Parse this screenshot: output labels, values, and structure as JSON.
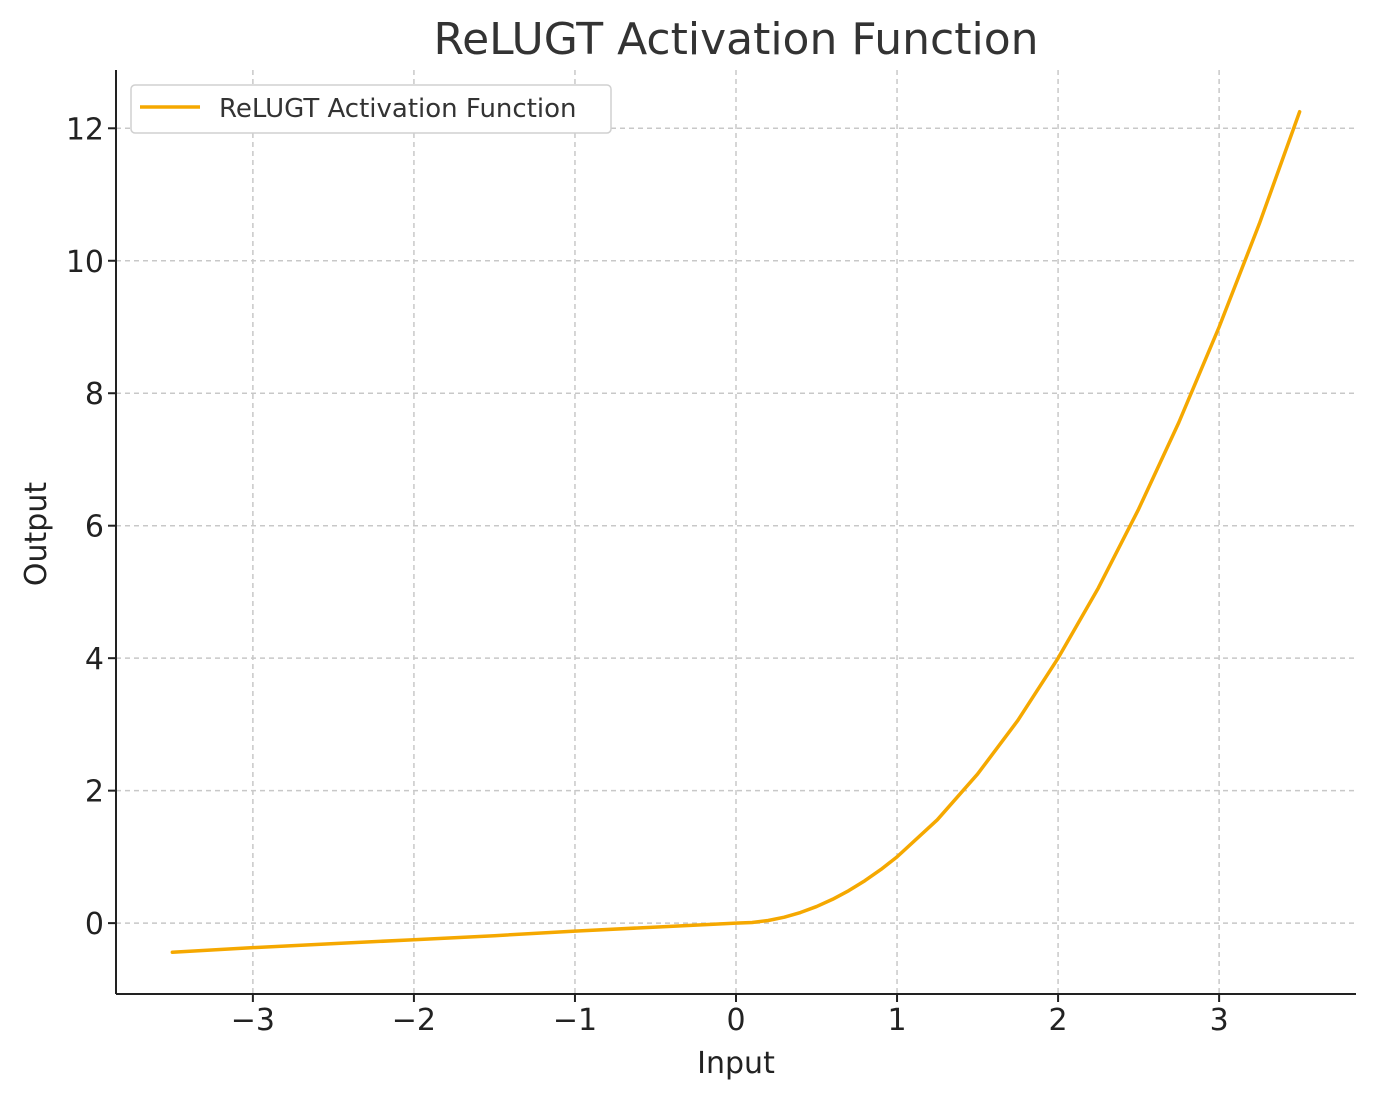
{
  "chart_data": {
    "type": "line",
    "title": "ReLUGT Activation Function",
    "xlabel": "Input",
    "ylabel": "Output",
    "xlim": [
      -3.85,
      3.85
    ],
    "ylim": [
      -1.07,
      12.88
    ],
    "x_ticks": [
      -3,
      -2,
      -1,
      0,
      1,
      2,
      3
    ],
    "x_tick_labels": [
      "−3",
      "−2",
      "−1",
      "0",
      "1",
      "2",
      "3"
    ],
    "y_ticks": [
      0,
      2,
      4,
      6,
      8,
      10,
      12
    ],
    "y_tick_labels": [
      "0",
      "2",
      "4",
      "6",
      "8",
      "10",
      "12"
    ],
    "grid": true,
    "legend": {
      "placement": "top-left",
      "entries": [
        "ReLUGT Activation Function"
      ]
    },
    "series": [
      {
        "name": "ReLUGT Activation Function",
        "color": "#f5a800",
        "x": [
          -3.5,
          -3.0,
          -2.5,
          -2.0,
          -1.5,
          -1.0,
          -0.5,
          0.0,
          0.1,
          0.2,
          0.3,
          0.4,
          0.5,
          0.6,
          0.7,
          0.8,
          0.9,
          1.0,
          1.25,
          1.5,
          1.75,
          2.0,
          2.25,
          2.5,
          2.75,
          3.0,
          3.25,
          3.5
        ],
        "y": [
          -0.44,
          -0.37,
          -0.31,
          -0.25,
          -0.19,
          -0.12,
          -0.06,
          0.0,
          0.01,
          0.04,
          0.09,
          0.16,
          0.25,
          0.36,
          0.49,
          0.64,
          0.81,
          1.0,
          1.56,
          2.25,
          3.06,
          4.0,
          5.06,
          6.25,
          7.56,
          9.0,
          10.56,
          12.25
        ]
      }
    ]
  }
}
